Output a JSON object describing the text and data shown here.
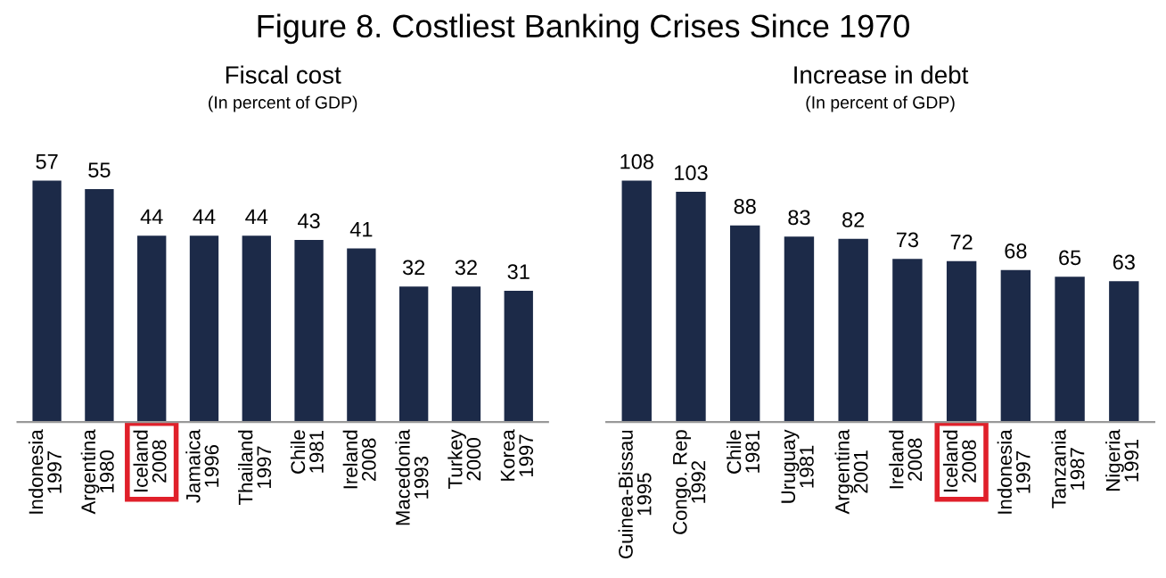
{
  "chart_data": [
    {
      "type": "bar",
      "title": "Fiscal cost",
      "subtitle": "(In percent of GDP)",
      "annotations": [
        "Figure 8. Costliest Banking Crises Since 1970"
      ],
      "categories": [
        "Indonesia\n1997",
        "Argentina\n1980",
        "Iceland\n2008",
        "Jamaica\n1996",
        "Thailand\n1997",
        "Chile\n1981",
        "Ireland\n2008",
        "Macedonia\n1993",
        "Turkey\n2000",
        "Korea\n1997"
      ],
      "values": [
        57,
        55,
        44,
        44,
        44,
        43,
        41,
        32,
        32,
        31
      ],
      "color": "#1c2a48",
      "data_labels": true
    },
    {
      "type": "bar",
      "title": "Increase in debt",
      "subtitle": "(In percent of GDP)",
      "categories": [
        "Guinea-Bissau\n1995",
        "Congo. Rep\n1992",
        "Chile\n1981",
        "Uruguay\n1981",
        "Argentina\n2001",
        "Ireland\n2008",
        "Iceland\n2008",
        "Indonesia\n1997",
        "Tanzania\n1987",
        "Nigeria\n1991"
      ],
      "values": [
        108,
        103,
        88,
        83,
        82,
        73,
        72,
        68,
        65,
        63
      ],
      "color": "#1c2a48",
      "data_labels": true
    }
  ]
}
